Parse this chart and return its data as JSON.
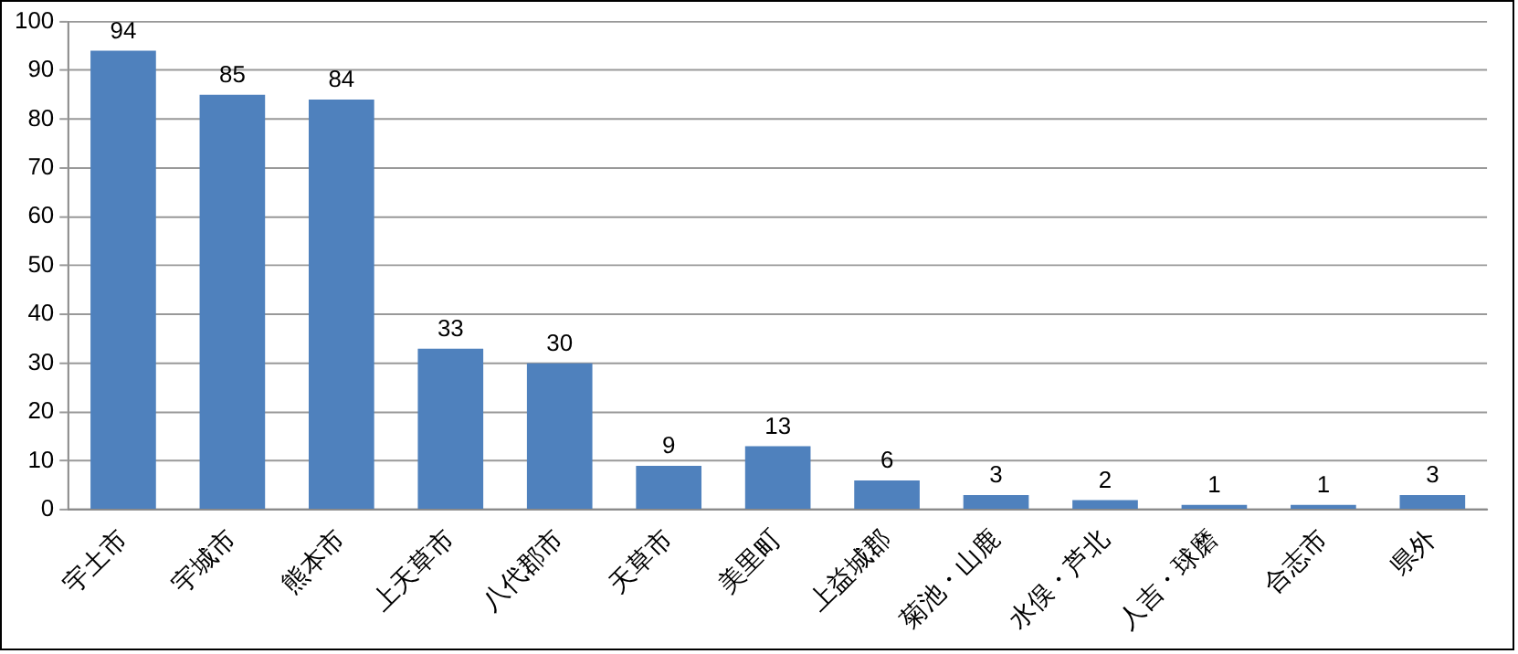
{
  "chart_data": {
    "type": "bar",
    "categories": [
      "宇土市",
      "宇城市",
      "熊本市",
      "上天草市",
      "八代郡市",
      "天草市",
      "美里町",
      "上益城郡",
      "菊池・山鹿",
      "水俣・芦北",
      "人吉・球磨",
      "合志市",
      "県外"
    ],
    "values": [
      94,
      85,
      84,
      33,
      30,
      9,
      13,
      6,
      3,
      2,
      1,
      1,
      3
    ],
    "color": "#4f81bd",
    "ylim": [
      0,
      100
    ],
    "yticks": [
      0,
      10,
      20,
      30,
      40,
      50,
      60,
      70,
      80,
      90,
      100
    ],
    "grid": "y",
    "legend": false,
    "data_labels": true
  }
}
